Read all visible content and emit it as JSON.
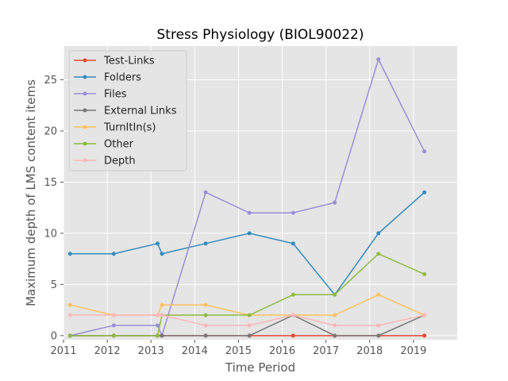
{
  "chart_data": {
    "type": "line",
    "title": "Stress Physiology (BIOL90022)",
    "xlabel": "Time Period",
    "ylabel": "Maximum depth of LMS content items",
    "xlim": [
      2011,
      2020
    ],
    "ylim": [
      -0.4,
      28.3
    ],
    "xticks": [
      2011,
      2012,
      2013,
      2014,
      2015,
      2016,
      2017,
      2018,
      2019
    ],
    "yticks": [
      0,
      5,
      10,
      15,
      20,
      25
    ],
    "grid": true,
    "legend_position": "top-left",
    "x": [
      2011.15,
      2012.15,
      2013.15,
      2013.25,
      2014.25,
      2015.25,
      2016.25,
      2017.2,
      2018.2,
      2019.25
    ],
    "series": [
      {
        "name": "Test-Links",
        "color": "#e24a33",
        "values": [
          0,
          0,
          0,
          0,
          0,
          0,
          0,
          0,
          0,
          0
        ]
      },
      {
        "name": "Folders",
        "color": "#348abd",
        "values": [
          8,
          8,
          9,
          8,
          9,
          10,
          9,
          4,
          10,
          14
        ]
      },
      {
        "name": "Files",
        "color": "#988ed5",
        "values": [
          0,
          1,
          1,
          0,
          14,
          12,
          12,
          13,
          27,
          18
        ]
      },
      {
        "name": "External Links",
        "color": "#777777",
        "values": [
          0,
          0,
          0,
          0,
          0,
          0,
          2,
          0,
          0,
          2
        ]
      },
      {
        "name": "TurnItIn(s)",
        "color": "#fbc15e",
        "values": [
          3,
          2,
          2,
          3,
          3,
          2,
          2,
          2,
          4,
          2
        ]
      },
      {
        "name": "Other",
        "color": "#8eba42",
        "values": [
          0,
          0,
          0,
          2,
          2,
          2,
          4,
          4,
          8,
          6
        ]
      },
      {
        "name": "Depth",
        "color": "#ffb5b8",
        "values": [
          2,
          2,
          2,
          2,
          1,
          1,
          2,
          1,
          1,
          2
        ]
      }
    ]
  }
}
